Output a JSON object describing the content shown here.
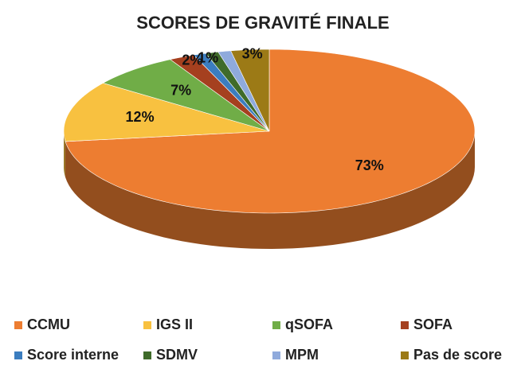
{
  "chart_data": {
    "type": "pie",
    "title": "SCORES DE GRAVITÉ FINALE",
    "categories": [
      "CCMU",
      "IGS II",
      "qSOFA",
      "SOFA",
      "Score interne",
      "SDMV",
      "MPM",
      "Pas de score"
    ],
    "values": [
      73,
      12,
      7,
      2,
      1,
      1,
      1,
      3
    ],
    "value_labels": [
      "73%",
      "12%",
      "7%",
      "2%",
      "1%",
      null,
      null,
      "3%"
    ],
    "colors": [
      "#ED7D31",
      "#F8C140",
      "#70AD47",
      "#A5401F",
      "#3B7DBF",
      "#3F6B2A",
      "#8FAADC",
      "#9C7A16"
    ],
    "legend": "bottom"
  }
}
